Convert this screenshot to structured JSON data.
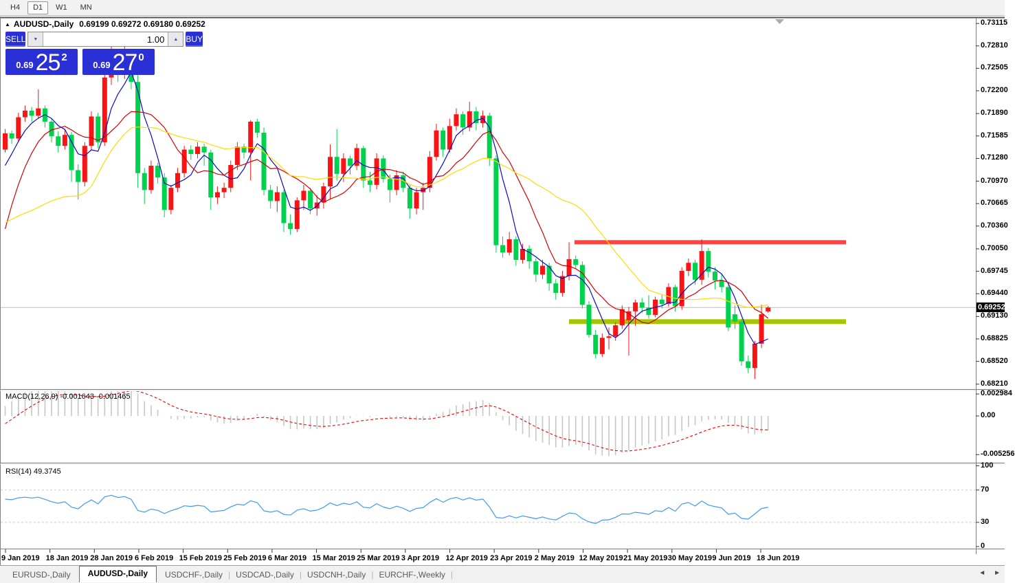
{
  "toolbar": {
    "timeframes": [
      {
        "label": "H4",
        "active": false
      },
      {
        "label": "D1",
        "active": true
      },
      {
        "label": "W1",
        "active": false
      },
      {
        "label": "MN",
        "active": false
      }
    ]
  },
  "header": {
    "collapse_icon": "▲",
    "symbol_title": "AUDUSD-,Daily",
    "ohlc_text": "0.69199 0.69272 0.69180 0.69252"
  },
  "trade_panel": {
    "sell_label": "SELL",
    "buy_label": "BUY",
    "volume": "1.00",
    "spin_down_icon": "▼",
    "spin_up_icon": "▲",
    "sell_price_small": "0.69",
    "sell_price_big": "25",
    "sell_price_sup": "2",
    "buy_price_small": "0.69",
    "buy_price_big": "27",
    "buy_price_sup": "0"
  },
  "price_axis": {
    "labels": [
      "0.73115",
      "0.72810",
      "0.72505",
      "0.72200",
      "0.71890",
      "0.71585",
      "0.71280",
      "0.70970",
      "0.70665",
      "0.70360",
      "0.70050",
      "0.69745",
      "0.69440",
      "0.69130",
      "0.68825",
      "0.68520",
      "0.68210"
    ],
    "current": "0.69252"
  },
  "macd": {
    "title": "MACD(12,26,9)",
    "values": "-0.001643 -0.001465",
    "axis": [
      "0.002984",
      "0.00",
      "-0.005256"
    ],
    "fast": 12,
    "slow": 26,
    "signal": 9
  },
  "rsi": {
    "title": "RSI(14)",
    "value": "49.3745",
    "axis": [
      "100",
      "70",
      "30",
      "0"
    ],
    "levels": [
      70,
      30
    ],
    "period": 14
  },
  "time_axis": {
    "labels": [
      "9 Jan 2019",
      "18 Jan 2019",
      "28 Jan 2019",
      "6 Feb 2019",
      "15 Feb 2019",
      "25 Feb 2019",
      "6 Mar 2019",
      "15 Mar 2019",
      "25 Mar 2019",
      "3 Apr 2019",
      "12 Apr 2019",
      "23 Apr 2019",
      "2 May 2019",
      "12 May 2019",
      "21 May 2019",
      "30 May 2019",
      "9 Jun 2019",
      "18 Jun 2019"
    ]
  },
  "tabs": {
    "items": [
      {
        "label": "EURUSD-,Daily",
        "active": false
      },
      {
        "label": "AUDUSD-,Daily",
        "active": true
      },
      {
        "label": "USDCHF-,Daily",
        "active": false
      },
      {
        "label": "USDCAD-,Daily",
        "active": false
      },
      {
        "label": "USDCNH-,Daily",
        "active": false
      },
      {
        "label": "EURCHF-,Weekly",
        "active": false
      }
    ],
    "scroll_left": "◄",
    "scroll_right": "►"
  },
  "colors": {
    "bull": "#f81414",
    "bear": "#00d24e",
    "ma_fast": "#0a0ac8",
    "ma_mid": "#d40000",
    "ma_slow": "#ffdc00",
    "macd_hist": "#c6c6c6",
    "macd_signal": "#f40000",
    "rsi_line": "#3e9aef",
    "resistance": "#ff4242",
    "support": "#a9c400",
    "bid_line": "#bdbdbd",
    "tag_bg": "#000000",
    "panel_blue": "#2a2fd6"
  },
  "chart_data": {
    "type": "candlestick",
    "symbol": "AUDUSD-",
    "timeframe": "Daily",
    "open": 0.69199,
    "high": 0.69272,
    "low": 0.6918,
    "close": 0.69252,
    "ylim": [
      0.6821,
      0.73115
    ],
    "x_range": [
      "9 Jan 2019",
      "21 Jun 2019"
    ],
    "grid": false,
    "up_color_convention": "red-up-green-down",
    "resistance_line": 0.7014,
    "support_line": 0.6906,
    "moving_averages": [
      {
        "period": 5,
        "color_key": "ma_fast"
      },
      {
        "period": 10,
        "color_key": "ma_mid"
      },
      {
        "period": 24,
        "color_key": "ma_slow"
      }
    ],
    "candles": [
      [
        0.714,
        0.7168,
        0.7136,
        0.7162
      ],
      [
        0.7162,
        0.7166,
        0.7148,
        0.7155
      ],
      [
        0.7155,
        0.719,
        0.715,
        0.7184
      ],
      [
        0.7184,
        0.72,
        0.7178,
        0.7193
      ],
      [
        0.7193,
        0.7198,
        0.7178,
        0.7186
      ],
      [
        0.7186,
        0.7222,
        0.7182,
        0.7196
      ],
      [
        0.7196,
        0.72,
        0.717,
        0.7178
      ],
      [
        0.7178,
        0.7182,
        0.715,
        0.7158
      ],
      [
        0.7158,
        0.7165,
        0.7136,
        0.7145
      ],
      [
        0.7145,
        0.7168,
        0.714,
        0.716
      ],
      [
        0.716,
        0.7164,
        0.7096,
        0.7112
      ],
      [
        0.7112,
        0.712,
        0.7072,
        0.7096
      ],
      [
        0.7096,
        0.715,
        0.709,
        0.7145
      ],
      [
        0.7145,
        0.7192,
        0.714,
        0.7185
      ],
      [
        0.7185,
        0.719,
        0.7142,
        0.715
      ],
      [
        0.715,
        0.7252,
        0.7145,
        0.7238
      ],
      [
        0.7238,
        0.7295,
        0.7228,
        0.7262
      ],
      [
        0.7262,
        0.727,
        0.7232,
        0.7242
      ],
      [
        0.7242,
        0.728,
        0.7236,
        0.7255
      ],
      [
        0.7255,
        0.7262,
        0.7222,
        0.7232
      ],
      [
        0.7232,
        0.7242,
        0.7088,
        0.7108
      ],
      [
        0.7108,
        0.7115,
        0.7066,
        0.7085
      ],
      [
        0.7085,
        0.7125,
        0.708,
        0.7118
      ],
      [
        0.7118,
        0.7122,
        0.7094,
        0.7102
      ],
      [
        0.7102,
        0.7108,
        0.7048,
        0.7058
      ],
      [
        0.7058,
        0.7092,
        0.7052,
        0.7088
      ],
      [
        0.7088,
        0.7115,
        0.7082,
        0.7108
      ],
      [
        0.7108,
        0.7145,
        0.7102,
        0.714
      ],
      [
        0.714,
        0.7146,
        0.7126,
        0.7134
      ],
      [
        0.7134,
        0.715,
        0.7128,
        0.7144
      ],
      [
        0.7144,
        0.7148,
        0.7118,
        0.7136
      ],
      [
        0.7136,
        0.714,
        0.7058,
        0.7075
      ],
      [
        0.7075,
        0.709,
        0.7066,
        0.7082
      ],
      [
        0.7082,
        0.7095,
        0.7074,
        0.7088
      ],
      [
        0.7088,
        0.7125,
        0.7082,
        0.7119
      ],
      [
        0.7119,
        0.715,
        0.7112,
        0.7144
      ],
      [
        0.7144,
        0.7148,
        0.7128,
        0.7136
      ],
      [
        0.7136,
        0.718,
        0.7098,
        0.7178
      ],
      [
        0.7178,
        0.7182,
        0.7156,
        0.7163
      ],
      [
        0.7163,
        0.717,
        0.7078,
        0.7085
      ],
      [
        0.7085,
        0.7092,
        0.706,
        0.707
      ],
      [
        0.707,
        0.709,
        0.7055,
        0.7082
      ],
      [
        0.7082,
        0.7085,
        0.7028,
        0.704
      ],
      [
        0.704,
        0.7052,
        0.7024,
        0.7032
      ],
      [
        0.7032,
        0.7075,
        0.7028,
        0.7071
      ],
      [
        0.7071,
        0.7092,
        0.7058,
        0.7084
      ],
      [
        0.7084,
        0.7088,
        0.7052,
        0.706
      ],
      [
        0.706,
        0.7078,
        0.705,
        0.7068
      ],
      [
        0.7068,
        0.7095,
        0.706,
        0.709
      ],
      [
        0.709,
        0.7147,
        0.7072,
        0.713
      ],
      [
        0.713,
        0.7168,
        0.7098,
        0.7107
      ],
      [
        0.7107,
        0.7135,
        0.7096,
        0.7128
      ],
      [
        0.7128,
        0.7132,
        0.7106,
        0.7118
      ],
      [
        0.7118,
        0.7148,
        0.7112,
        0.7142
      ],
      [
        0.7142,
        0.7145,
        0.7088,
        0.7098
      ],
      [
        0.7098,
        0.711,
        0.7082,
        0.7092
      ],
      [
        0.7092,
        0.7135,
        0.7086,
        0.7128
      ],
      [
        0.7128,
        0.7132,
        0.7095,
        0.71
      ],
      [
        0.71,
        0.7106,
        0.7068,
        0.7085
      ],
      [
        0.7085,
        0.7112,
        0.7078,
        0.7105
      ],
      [
        0.7105,
        0.711,
        0.7082,
        0.7088
      ],
      [
        0.7088,
        0.7092,
        0.7046,
        0.706
      ],
      [
        0.706,
        0.7088,
        0.7052,
        0.7082
      ],
      [
        0.7082,
        0.7095,
        0.7058,
        0.7088
      ],
      [
        0.7088,
        0.7138,
        0.7082,
        0.713
      ],
      [
        0.713,
        0.7175,
        0.7125,
        0.7166
      ],
      [
        0.7166,
        0.717,
        0.713,
        0.714
      ],
      [
        0.714,
        0.7182,
        0.7136,
        0.7172
      ],
      [
        0.7172,
        0.7196,
        0.7166,
        0.7188
      ],
      [
        0.7188,
        0.7192,
        0.716,
        0.717
      ],
      [
        0.717,
        0.7205,
        0.7165,
        0.7192
      ],
      [
        0.7192,
        0.7198,
        0.7166,
        0.7176
      ],
      [
        0.7176,
        0.7193,
        0.717,
        0.7186
      ],
      [
        0.7186,
        0.719,
        0.7118,
        0.7128
      ],
      [
        0.7128,
        0.7132,
        0.7,
        0.701
      ],
      [
        0.701,
        0.7022,
        0.6993,
        0.7
      ],
      [
        0.7,
        0.7028,
        0.6996,
        0.7018
      ],
      [
        0.7018,
        0.7022,
        0.6982,
        0.699
      ],
      [
        0.699,
        0.7012,
        0.6985,
        0.7005
      ],
      [
        0.7005,
        0.701,
        0.6978,
        0.6988
      ],
      [
        0.6988,
        0.6992,
        0.696,
        0.697
      ],
      [
        0.697,
        0.699,
        0.6964,
        0.6982
      ],
      [
        0.6982,
        0.6986,
        0.6948,
        0.6958
      ],
      [
        0.6958,
        0.6964,
        0.6936,
        0.6945
      ],
      [
        0.6945,
        0.6975,
        0.694,
        0.6968
      ],
      [
        0.6968,
        0.7014,
        0.6962,
        0.6991
      ],
      [
        0.6991,
        0.6996,
        0.6978,
        0.6983
      ],
      [
        0.6983,
        0.6988,
        0.6924,
        0.6929
      ],
      [
        0.6929,
        0.6934,
        0.6884,
        0.6888
      ],
      [
        0.6888,
        0.6895,
        0.6856,
        0.6862
      ],
      [
        0.6862,
        0.689,
        0.6858,
        0.6884
      ],
      [
        0.6884,
        0.6898,
        0.6868,
        0.6886
      ],
      [
        0.6886,
        0.6905,
        0.688,
        0.6901
      ],
      [
        0.6901,
        0.6928,
        0.6896,
        0.6923
      ],
      [
        0.6908,
        0.6926,
        0.686,
        0.692
      ],
      [
        0.692,
        0.6936,
        0.69,
        0.6932
      ],
      [
        0.6932,
        0.6938,
        0.6918,
        0.6925
      ],
      [
        0.6925,
        0.6942,
        0.691,
        0.6915
      ],
      [
        0.6915,
        0.694,
        0.6912,
        0.6936
      ],
      [
        0.6936,
        0.6942,
        0.6924,
        0.693
      ],
      [
        0.693,
        0.6958,
        0.6926,
        0.6953
      ],
      [
        0.6953,
        0.6956,
        0.692,
        0.6927
      ],
      [
        0.6927,
        0.698,
        0.6922,
        0.6975
      ],
      [
        0.6975,
        0.6992,
        0.6968,
        0.6986
      ],
      [
        0.6986,
        0.699,
        0.6956,
        0.6963
      ],
      [
        0.6963,
        0.7018,
        0.6956,
        0.7002
      ],
      [
        0.7002,
        0.7006,
        0.6966,
        0.6974
      ],
      [
        0.6974,
        0.698,
        0.695,
        0.6962
      ],
      [
        0.6962,
        0.697,
        0.6946,
        0.6953
      ],
      [
        0.6953,
        0.6958,
        0.6893,
        0.6898
      ],
      [
        0.6916,
        0.6928,
        0.6896,
        0.6906
      ],
      [
        0.6906,
        0.691,
        0.6846,
        0.6852
      ],
      [
        0.6852,
        0.686,
        0.6836,
        0.6843
      ],
      [
        0.6843,
        0.688,
        0.6828,
        0.6876
      ],
      [
        0.6876,
        0.6929,
        0.687,
        0.6916
      ],
      [
        0.69199,
        0.69272,
        0.6918,
        0.69252
      ]
    ]
  }
}
